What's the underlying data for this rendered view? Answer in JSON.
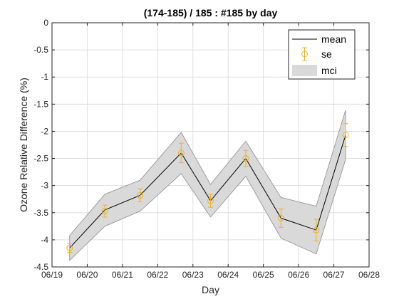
{
  "chart_data": {
    "type": "line",
    "title": "(174-185) / 185 : #185 by day",
    "xlabel": "Day",
    "ylabel": "Ozone Relative Difference (%)",
    "xlim": [
      "06/19",
      "06/28"
    ],
    "ylim": [
      -4.5,
      0
    ],
    "x_ticks": [
      "06/19",
      "06/20",
      "06/21",
      "06/22",
      "06/23",
      "06/24",
      "06/25",
      "06/26",
      "06/27",
      "06/28"
    ],
    "y_ticks": [
      0,
      -0.5,
      -1,
      -1.5,
      -2,
      -2.5,
      -3,
      -3.5,
      -4,
      -4.5
    ],
    "grid": true,
    "legend_position": "top-right",
    "x": [
      "06/19 12:00",
      "06/20 12:00",
      "06/21 12:00",
      "06/22 16:00",
      "06/23 12:00",
      "06/24 12:00",
      "06/25 12:00",
      "06/26 12:00",
      "06/27 08:00"
    ],
    "series": [
      {
        "name": "mean",
        "values": [
          -4.15,
          -3.45,
          -3.18,
          -2.4,
          -3.28,
          -2.5,
          -3.6,
          -3.82,
          -2.07
        ],
        "color": "#000000"
      },
      {
        "name": "se",
        "values": [
          -4.15,
          -3.47,
          -3.18,
          -2.4,
          -3.28,
          -2.5,
          -3.6,
          -3.82,
          -2.07
        ],
        "err": [
          0.08,
          0.11,
          0.12,
          0.18,
          0.12,
          0.15,
          0.17,
          0.2,
          0.21
        ],
        "color": "#EDB120"
      },
      {
        "name": "mci",
        "lower": [
          -4.38,
          -3.75,
          -3.47,
          -2.78,
          -3.58,
          -2.83,
          -3.97,
          -4.26,
          -2.52
        ],
        "upper": [
          -3.92,
          -3.16,
          -2.9,
          -2.02,
          -2.98,
          -2.18,
          -3.22,
          -3.38,
          -1.61
        ],
        "color": "#d9d9d9"
      }
    ]
  }
}
